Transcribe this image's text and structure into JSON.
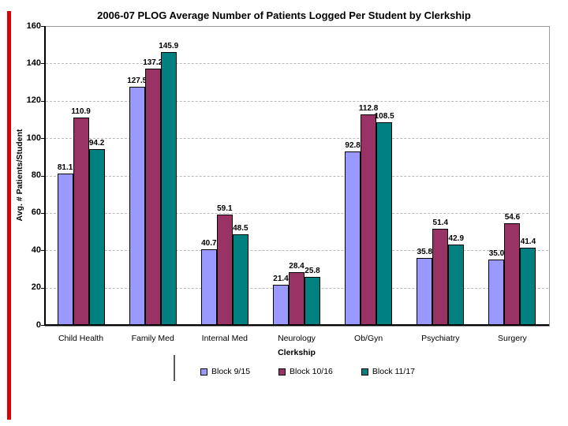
{
  "slide": {
    "background_color": "#FFFFFF",
    "accent_line_color": "#DD0000"
  },
  "chart_data": {
    "type": "bar",
    "title": "2006-07 PLOG Average Number of Patients Logged Per Student by Clerkship",
    "xlabel": "Clerkship",
    "ylabel": "Avg. # Patients/Student",
    "ylim": [
      0,
      160
    ],
    "ytick_step": 20,
    "grid": "horizontal-dashed-gray",
    "legend_position": "bottom-center",
    "axis_color": "#000000",
    "gridline_color": "#B9B9B9",
    "bar_border_color": "#000000",
    "categories": [
      "Child Health",
      "Family Med",
      "Internal Med",
      "Neurology",
      "Ob/Gyn",
      "Psychiatry",
      "Surgery"
    ],
    "series": [
      {
        "name": "Block 9/15",
        "color": "#9999FF",
        "values": [
          81.1,
          127.5,
          40.7,
          21.4,
          92.8,
          35.8,
          35.0
        ],
        "labels": [
          "81.1",
          "127.5",
          "40.7",
          "21.4",
          "92.8",
          "35.8",
          "35.0"
        ]
      },
      {
        "name": "Block 10/16",
        "color": "#993366",
        "values": [
          110.9,
          137.2,
          59.1,
          28.4,
          112.8,
          51.4,
          54.6
        ],
        "labels": [
          "110.9",
          "137.2",
          "59.1",
          "28.4",
          "112.8",
          "51.4",
          "54.6"
        ]
      },
      {
        "name": "Block 11/17",
        "color": "#008080",
        "values": [
          94.2,
          145.9,
          48.5,
          25.8,
          108.5,
          42.9,
          41.4
        ],
        "labels": [
          "94.2",
          "145.9",
          "48.5",
          "25.8",
          "108.5",
          "42.9",
          "41.4"
        ]
      }
    ]
  }
}
